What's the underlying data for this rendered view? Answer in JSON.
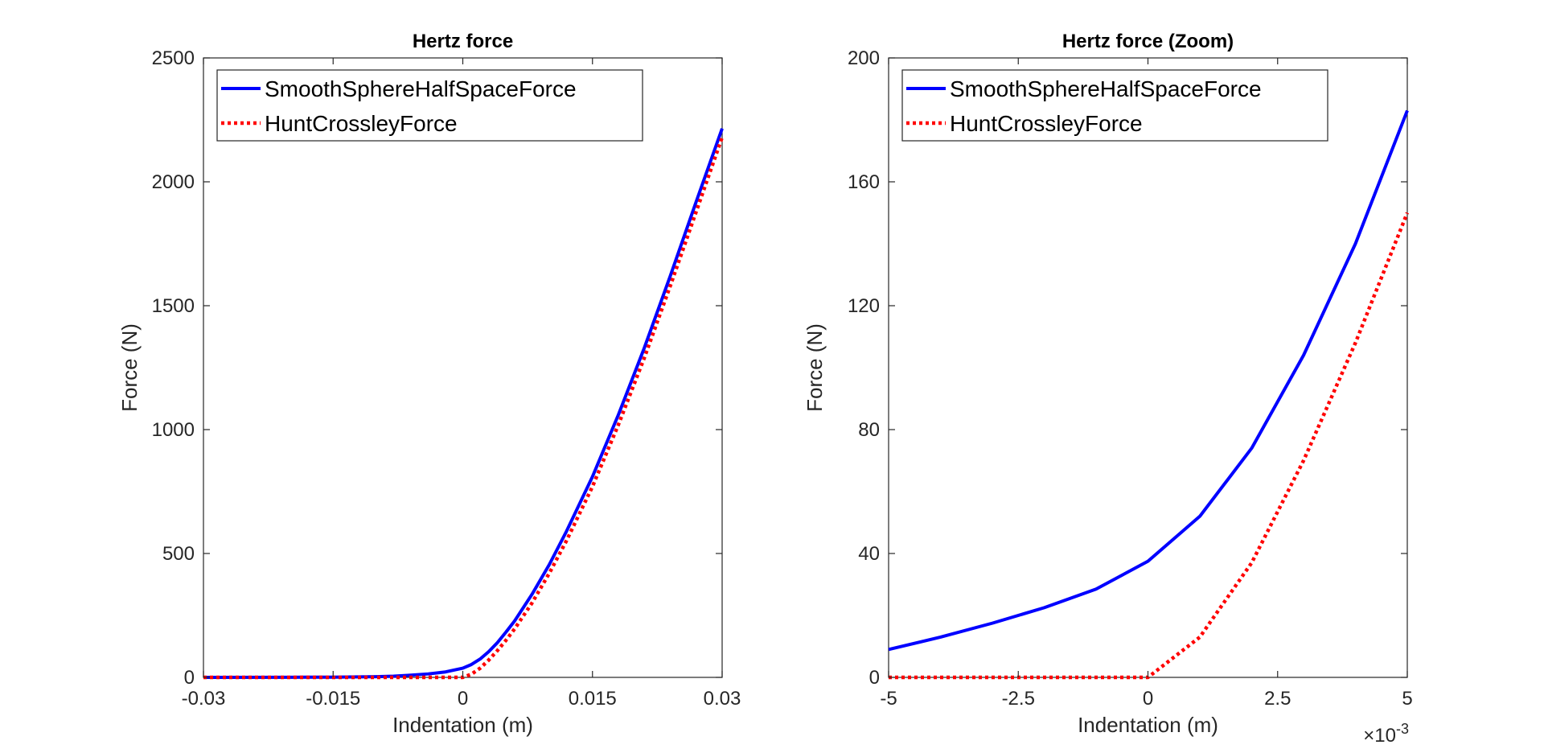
{
  "chart_data": [
    {
      "type": "line",
      "title": "Hertz force",
      "xlabel": "Indentation (m)",
      "ylabel": "Force (N)",
      "xlim": [
        -0.03,
        0.03
      ],
      "ylim": [
        0,
        2500
      ],
      "xticks": [
        -0.03,
        -0.015,
        0,
        0.015,
        0.03
      ],
      "xtick_labels": [
        "-0.03",
        "-0.015",
        "0",
        "0.015",
        "0.03"
      ],
      "yticks": [
        0,
        500,
        1000,
        1500,
        2000,
        2500
      ],
      "ytick_labels": [
        "0",
        "500",
        "1000",
        "1500",
        "2000",
        "2500"
      ],
      "x_exponent": "",
      "grid": false,
      "legend_position": "top-left",
      "series": [
        {
          "name": "SmoothSphereHalfSpaceForce",
          "color": "#0000ff",
          "style": "solid",
          "x": [
            -0.03,
            -0.02,
            -0.015,
            -0.01,
            -0.008,
            -0.006,
            -0.004,
            -0.002,
            0,
            0.001,
            0.002,
            0.003,
            0.004,
            0.005,
            0.006,
            0.008,
            0.01,
            0.012,
            0.015,
            0.018,
            0.021,
            0.024,
            0.027,
            0.03
          ],
          "y": [
            0,
            0.5,
            1,
            3,
            5,
            9,
            14,
            22,
            37,
            52,
            74,
            104,
            140,
            183,
            228,
            335,
            455,
            590,
            810,
            1060,
            1330,
            1620,
            1920,
            2215
          ]
        },
        {
          "name": "HuntCrossleyForce",
          "color": "#ff0000",
          "style": "dotted",
          "x": [
            -0.03,
            -0.02,
            -0.015,
            -0.01,
            -0.005,
            -0.002,
            0,
            0.001,
            0.002,
            0.003,
            0.004,
            0.005,
            0.006,
            0.008,
            0.01,
            0.012,
            0.015,
            0.018,
            0.021,
            0.024,
            0.027,
            0.03
          ],
          "y": [
            0,
            0,
            0,
            0,
            0,
            0,
            0,
            13,
            37,
            70,
            108,
            150,
            196,
            300,
            420,
            552,
            770,
            1020,
            1290,
            1580,
            1880,
            2180
          ]
        }
      ]
    },
    {
      "type": "line",
      "title": "Hertz force (Zoom)",
      "xlabel": "Indentation (m)",
      "ylabel": "Force (N)",
      "xlim": [
        -0.005,
        0.005
      ],
      "ylim": [
        0,
        200
      ],
      "xticks": [
        -0.005,
        -0.0025,
        0,
        0.0025,
        0.005
      ],
      "xtick_labels": [
        "-5",
        "-2.5",
        "0",
        "2.5",
        "5"
      ],
      "yticks": [
        0,
        40,
        80,
        120,
        160,
        200
      ],
      "ytick_labels": [
        "0",
        "40",
        "80",
        "120",
        "160",
        "200"
      ],
      "x_exponent": "-3",
      "grid": false,
      "legend_position": "top-left",
      "series": [
        {
          "name": "SmoothSphereHalfSpaceForce",
          "color": "#0000ff",
          "style": "solid",
          "x": [
            -0.005,
            -0.004,
            -0.003,
            -0.002,
            -0.001,
            0,
            0.001,
            0.002,
            0.003,
            0.004,
            0.005
          ],
          "y": [
            9,
            13,
            17.5,
            22.5,
            28.5,
            37.5,
            52,
            74,
            104,
            140,
            183
          ]
        },
        {
          "name": "HuntCrossleyForce",
          "color": "#ff0000",
          "style": "dotted",
          "x": [
            -0.005,
            -0.004,
            -0.003,
            -0.002,
            -0.001,
            0,
            0.001,
            0.002,
            0.003,
            0.004,
            0.005
          ],
          "y": [
            0,
            0,
            0,
            0,
            0,
            0,
            13,
            37,
            70,
            108,
            150
          ]
        }
      ]
    }
  ]
}
